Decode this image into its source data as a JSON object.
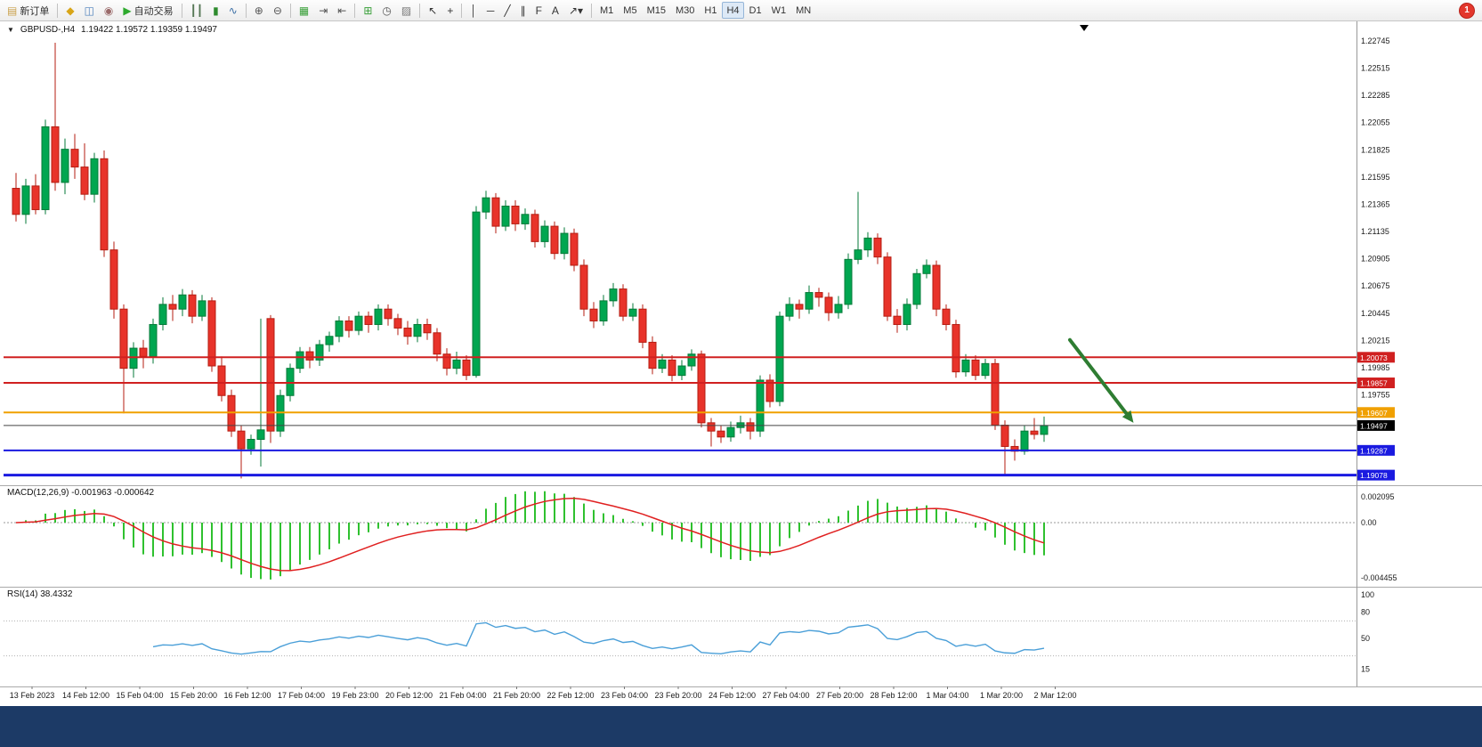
{
  "toolbar": {
    "notification_badge": "1",
    "items": [
      {
        "name": "new-order-button",
        "label": "新订单",
        "glyph": "▤",
        "glyph_color": "#caa24e",
        "glyph_name": "new-order-icon"
      },
      {
        "separator": true
      },
      {
        "name": "new-chart-button",
        "glyph": "◆",
        "glyph_color": "#d8a517",
        "glyph_name": "new-chart-icon"
      },
      {
        "name": "profiles-button",
        "glyph": "◫",
        "glyph_color": "#4a7ebb",
        "glyph_name": "profiles-icon"
      },
      {
        "name": "data-window-button",
        "glyph": "◉",
        "glyph_color": "#9a6a6a",
        "glyph_name": "data-window-icon"
      },
      {
        "name": "autotrading-button",
        "label": "自动交易",
        "glyph": "▶",
        "glyph_color": "#2eaa2e",
        "glyph_name": "autotrading-icon"
      },
      {
        "separator": true
      },
      {
        "name": "bar-chart-button",
        "glyph": "┃┃",
        "glyph_color": "#557755",
        "glyph_name": "bar-chart-icon"
      },
      {
        "name": "candlestick-chart-button",
        "glyph": "▮",
        "glyph_color": "#2e8b2e",
        "glyph_name": "candlestick-icon"
      },
      {
        "name": "line-chart-button",
        "glyph": "∿",
        "glyph_color": "#3a6ea5",
        "glyph_name": "line-chart-icon"
      },
      {
        "separator": true
      },
      {
        "name": "zoom-in-button",
        "glyph": "⊕",
        "glyph_color": "#555555",
        "glyph_name": "zoom-in-icon"
      },
      {
        "name": "zoom-out-button",
        "glyph": "⊖",
        "glyph_color": "#555555",
        "glyph_name": "zoom-out-icon"
      },
      {
        "separator": true
      },
      {
        "name": "tile-windows-button",
        "glyph": "▦",
        "glyph_color": "#3aa03a",
        "glyph_name": "tile-windows-icon"
      },
      {
        "name": "auto-scroll-button",
        "glyph": "⇥",
        "glyph_color": "#555555",
        "glyph_name": "auto-scroll-icon"
      },
      {
        "name": "chart-shift-button",
        "glyph": "⇤",
        "glyph_color": "#555555",
        "glyph_name": "chart-shift-icon"
      },
      {
        "separator": true
      },
      {
        "name": "indicators-button",
        "glyph": "⊞",
        "glyph_color": "#3aa03a",
        "glyph_name": "indicators-icon"
      },
      {
        "name": "periods-button",
        "glyph": "◷",
        "glyph_color": "#555555",
        "glyph_name": "periods-icon"
      },
      {
        "name": "templates-button",
        "glyph": "▨",
        "glyph_color": "#777777",
        "glyph_name": "templates-icon"
      },
      {
        "separator": true
      },
      {
        "name": "cursor-button",
        "glyph": "↖",
        "glyph_color": "#333333",
        "glyph_name": "cursor-icon"
      },
      {
        "name": "crosshair-button",
        "glyph": "+",
        "glyph_color": "#333333",
        "glyph_name": "crosshair-icon"
      },
      {
        "separator": true
      },
      {
        "name": "vertical-line-button",
        "glyph": "│",
        "glyph_color": "#333333",
        "glyph_name": "vertical-line-icon"
      },
      {
        "name": "horizontal-line-button",
        "glyph": "─",
        "glyph_color": "#333333",
        "glyph_name": "horizontal-line-icon"
      },
      {
        "name": "trendline-button",
        "glyph": "╱",
        "glyph_color": "#333333",
        "glyph_name": "trendline-icon"
      },
      {
        "name": "equidistant-channel-button",
        "glyph": "∥",
        "glyph_color": "#333333",
        "glyph_name": "equidistant-channel-icon"
      },
      {
        "name": "fibonacci-button",
        "glyph": "F",
        "glyph_color": "#333333",
        "glyph_name": "fibonacci-icon"
      },
      {
        "name": "text-button",
        "glyph": "A",
        "glyph_color": "#333333",
        "glyph_name": "text-icon"
      },
      {
        "name": "arrows-button",
        "glyph": "↗▾",
        "glyph_color": "#333333",
        "glyph_name": "arrows-icon"
      },
      {
        "separator": true
      },
      {
        "name": "tf-m1-button",
        "label": "M1"
      },
      {
        "name": "tf-m5-button",
        "label": "M5"
      },
      {
        "name": "tf-m15-button",
        "label": "M15"
      },
      {
        "name": "tf-m30-button",
        "label": "M30"
      },
      {
        "name": "tf-h1-button",
        "label": "H1"
      },
      {
        "name": "tf-h4-button",
        "label": "H4",
        "active": true
      },
      {
        "name": "tf-d1-button",
        "label": "D1"
      },
      {
        "name": "tf-w1-button",
        "label": "W1"
      },
      {
        "name": "tf-mn-button",
        "label": "MN"
      }
    ]
  },
  "chart": {
    "title_symbol": "GBPUSD-,H4",
    "ohlc_text": "1.19422 1.19572 1.19359 1.19497"
  },
  "chart_data": {
    "type": "candlestick",
    "symbol": "GBPUSD-",
    "timeframe": "H4",
    "y_axis_labels": [
      "1.22745",
      "1.22515",
      "1.22285",
      "1.22055",
      "1.21825",
      "1.21595",
      "1.21365",
      "1.21135",
      "1.20905",
      "1.20675",
      "1.20445",
      "1.20215",
      "1.19985",
      "1.19755"
    ],
    "x_labels": [
      "13 Feb 2023",
      "14 Feb 12:00",
      "15 Feb 04:00",
      "15 Feb 20:00",
      "16 Feb 12:00",
      "17 Feb 04:00",
      "19 Feb 23:00",
      "20 Feb 12:00",
      "21 Feb 04:00",
      "21 Feb 20:00",
      "22 Feb 12:00",
      "23 Feb 04:00",
      "23 Feb 20:00",
      "24 Feb 12:00",
      "27 Feb 04:00",
      "27 Feb 20:00",
      "28 Feb 12:00",
      "1 Mar 04:00",
      "1 Mar 20:00",
      "2 Mar 12:00"
    ],
    "levels": [
      {
        "price": 1.20073,
        "label": "1.20073",
        "color": "#d02020",
        "width": 2
      },
      {
        "price": 1.19857,
        "label": "1.19857",
        "color": "#d02020",
        "width": 2
      },
      {
        "price": 1.19607,
        "label": "1.19607",
        "color": "#f0a000",
        "width": 2
      },
      {
        "price": 1.19287,
        "label": "1.19287",
        "color": "#1a1ae0",
        "width": 2
      },
      {
        "price": 1.19078,
        "label": "1.19078",
        "color": "#1a1ae0",
        "width": 3
      }
    ],
    "current_price": {
      "value": 1.19497,
      "label": "1.19497",
      "color": "#000000"
    },
    "annotations": [
      {
        "type": "arrow",
        "x1_index": 108,
        "price1": 1.2022,
        "x2_index": 114.5,
        "price2": 1.1952,
        "color": "#2e7d32"
      }
    ],
    "indicators": [
      {
        "type": "macd",
        "label": "MACD(12,26,9)",
        "values_text": "-0.001963 -0.000642",
        "params": [
          12,
          26,
          9
        ],
        "axis_labels": [
          {
            "text": "0.002095",
            "value": 0.002095
          },
          {
            "text": "0.00",
            "value": 0
          },
          {
            "text": "-0.004455",
            "value": -0.004455
          }
        ],
        "histogram_color": "#2fc12f",
        "signal_color": "#e02020"
      },
      {
        "type": "rsi",
        "label": "RSI(14)",
        "value_text": "38.4332",
        "period": 14,
        "axis_labels": [
          {
            "text": "100",
            "value": 100
          },
          {
            "text": "80",
            "value": 80
          },
          {
            "text": "50",
            "value": 50
          },
          {
            "text": "15",
            "value": 15
          }
        ],
        "levels": [
          70,
          30
        ],
        "line_color": "#4a9fd8"
      }
    ],
    "candles": [
      [
        1.215,
        1.2163,
        1.2122,
        1.2128
      ],
      [
        1.2128,
        1.2158,
        1.212,
        1.2152
      ],
      [
        1.2152,
        1.2162,
        1.2128,
        1.2132
      ],
      [
        1.2132,
        1.2208,
        1.2128,
        1.2202
      ],
      [
        1.2202,
        1.2273,
        1.2148,
        1.2155
      ],
      [
        1.2155,
        1.2192,
        1.2145,
        1.2183
      ],
      [
        1.2183,
        1.2196,
        1.2158,
        1.2168
      ],
      [
        1.2168,
        1.2188,
        1.214,
        1.2145
      ],
      [
        1.2145,
        1.218,
        1.2138,
        1.2175
      ],
      [
        1.2175,
        1.2182,
        1.2092,
        1.2098
      ],
      [
        1.2098,
        1.2105,
        1.204,
        1.2048
      ],
      [
        1.2048,
        1.2052,
        1.196,
        1.1998
      ],
      [
        1.1998,
        1.202,
        1.199,
        1.2015
      ],
      [
        1.2015,
        1.2022,
        1.1998,
        1.2008
      ],
      [
        1.2008,
        1.204,
        1.2002,
        1.2035
      ],
      [
        1.2035,
        1.2058,
        1.203,
        1.2052
      ],
      [
        1.2052,
        1.206,
        1.2038,
        1.2048
      ],
      [
        1.2048,
        1.2065,
        1.2042,
        1.206
      ],
      [
        1.206,
        1.2064,
        1.2036,
        1.2042
      ],
      [
        1.2042,
        1.206,
        1.2038,
        1.2055
      ],
      [
        1.2055,
        1.2058,
        1.1995,
        1.2
      ],
      [
        1.2,
        1.2008,
        1.197,
        1.1975
      ],
      [
        1.1975,
        1.198,
        1.194,
        1.1945
      ],
      [
        1.1945,
        1.195,
        1.1905,
        1.193
      ],
      [
        1.193,
        1.1942,
        1.1925,
        1.1938
      ],
      [
        1.1938,
        1.204,
        1.1915,
        1.1946
      ],
      [
        1.204,
        1.2043,
        1.1935,
        1.1945
      ],
      [
        1.1945,
        1.198,
        1.194,
        1.1975
      ],
      [
        1.1975,
        1.2002,
        1.197,
        1.1998
      ],
      [
        1.1998,
        1.2016,
        1.1994,
        1.2012
      ],
      [
        1.2012,
        1.2016,
        1.1998,
        1.2005
      ],
      [
        1.2005,
        1.2022,
        1.2,
        1.2018
      ],
      [
        1.2018,
        1.2029,
        1.2012,
        1.2025
      ],
      [
        1.2025,
        1.2042,
        1.202,
        1.2038
      ],
      [
        1.2038,
        1.2042,
        1.2024,
        1.203
      ],
      [
        1.203,
        1.2046,
        1.2026,
        1.2042
      ],
      [
        1.2042,
        1.2046,
        1.2028,
        1.2035
      ],
      [
        1.2035,
        1.2052,
        1.203,
        1.2048
      ],
      [
        1.2048,
        1.2052,
        1.2034,
        1.204
      ],
      [
        1.204,
        1.2044,
        1.2026,
        1.2032
      ],
      [
        1.2032,
        1.2038,
        1.2018,
        1.2025
      ],
      [
        1.2025,
        1.204,
        1.202,
        1.2035
      ],
      [
        1.2035,
        1.204,
        1.2022,
        1.2028
      ],
      [
        1.2028,
        1.2032,
        1.2004,
        1.201
      ],
      [
        1.201,
        1.2015,
        1.1992,
        1.1998
      ],
      [
        1.1998,
        1.2012,
        1.1993,
        1.2005
      ],
      [
        1.2005,
        1.2009,
        1.1988,
        1.1992
      ],
      [
        1.1992,
        1.2135,
        1.199,
        1.213
      ],
      [
        1.213,
        1.2148,
        1.2124,
        1.2142
      ],
      [
        1.2142,
        1.2146,
        1.2112,
        1.2118
      ],
      [
        1.2118,
        1.214,
        1.2114,
        1.2135
      ],
      [
        1.2135,
        1.214,
        1.2114,
        1.212
      ],
      [
        1.212,
        1.2133,
        1.2115,
        1.2128
      ],
      [
        1.2128,
        1.2132,
        1.21,
        1.2105
      ],
      [
        1.2105,
        1.2123,
        1.21,
        1.2118
      ],
      [
        1.2118,
        1.2122,
        1.209,
        1.2095
      ],
      [
        1.2095,
        1.2117,
        1.209,
        1.2112
      ],
      [
        1.2112,
        1.2116,
        1.208,
        1.2085
      ],
      [
        1.2085,
        1.209,
        1.2042,
        1.2048
      ],
      [
        1.2048,
        1.2054,
        1.2032,
        1.2038
      ],
      [
        1.2038,
        1.206,
        1.2034,
        1.2055
      ],
      [
        1.2055,
        1.207,
        1.205,
        1.2065
      ],
      [
        1.2065,
        1.2069,
        1.2038,
        1.2042
      ],
      [
        1.2042,
        1.2053,
        1.2038,
        1.2048
      ],
      [
        1.2048,
        1.2052,
        1.2015,
        1.202
      ],
      [
        1.202,
        1.2025,
        1.1993,
        1.1998
      ],
      [
        1.1998,
        1.201,
        1.1994,
        1.2005
      ],
      [
        1.2005,
        1.2009,
        1.1987,
        1.1992
      ],
      [
        1.1992,
        1.2005,
        1.1988,
        1.2
      ],
      [
        1.2,
        1.2014,
        1.1996,
        1.201
      ],
      [
        1.201,
        1.2013,
        1.1948,
        1.1952
      ],
      [
        1.1952,
        1.1956,
        1.1932,
        1.1945
      ],
      [
        1.1945,
        1.195,
        1.1935,
        1.194
      ],
      [
        1.194,
        1.1953,
        1.1936,
        1.1948
      ],
      [
        1.1948,
        1.1958,
        1.1943,
        1.1952
      ],
      [
        1.1952,
        1.1956,
        1.1938,
        1.1945
      ],
      [
        1.1945,
        1.1992,
        1.194,
        1.1988
      ],
      [
        1.1988,
        1.1993,
        1.1965,
        1.197
      ],
      [
        1.197,
        1.2046,
        1.1966,
        1.2042
      ],
      [
        1.2042,
        1.2058,
        1.2038,
        1.2052
      ],
      [
        1.2052,
        1.2056,
        1.204,
        1.2048
      ],
      [
        1.2048,
        1.2068,
        1.2044,
        1.2062
      ],
      [
        1.2062,
        1.2066,
        1.205,
        1.2058
      ],
      [
        1.2058,
        1.2062,
        1.2038,
        1.2045
      ],
      [
        1.2045,
        1.2059,
        1.204,
        1.2052
      ],
      [
        1.2052,
        1.2095,
        1.2048,
        1.209
      ],
      [
        1.209,
        1.2147,
        1.2086,
        1.2098
      ],
      [
        1.2098,
        1.2113,
        1.2092,
        1.2108
      ],
      [
        1.2108,
        1.2112,
        1.2086,
        1.2092
      ],
      [
        1.2092,
        1.2096,
        1.2038,
        1.2042
      ],
      [
        1.2042,
        1.2048,
        1.2028,
        1.2035
      ],
      [
        1.2035,
        1.2057,
        1.203,
        1.2052
      ],
      [
        1.2052,
        1.2082,
        1.2048,
        1.2078
      ],
      [
        1.2078,
        1.209,
        1.2074,
        1.2085
      ],
      [
        1.2085,
        1.2089,
        1.2042,
        1.2048
      ],
      [
        1.2048,
        1.2052,
        1.203,
        1.2035
      ],
      [
        1.2035,
        1.2039,
        1.199,
        1.1995
      ],
      [
        1.1995,
        1.201,
        1.1991,
        1.2005
      ],
      [
        1.2005,
        1.2009,
        1.1988,
        1.1992
      ],
      [
        1.1992,
        1.2006,
        1.1989,
        1.2002
      ],
      [
        1.2002,
        1.2006,
        1.1946,
        1.195
      ],
      [
        1.195,
        1.1954,
        1.1908,
        1.1932
      ],
      [
        1.1932,
        1.1938,
        1.192,
        1.1928
      ],
      [
        1.1928,
        1.195,
        1.1925,
        1.1945
      ],
      [
        1.1945,
        1.1956,
        1.1938,
        1.19422
      ],
      [
        1.19422,
        1.19572,
        1.19359,
        1.19497
      ]
    ],
    "colors": {
      "up_fill": "#00a650",
      "up_border": "#047a38",
      "down_fill": "#e8332a",
      "down_border": "#b51d12"
    }
  }
}
